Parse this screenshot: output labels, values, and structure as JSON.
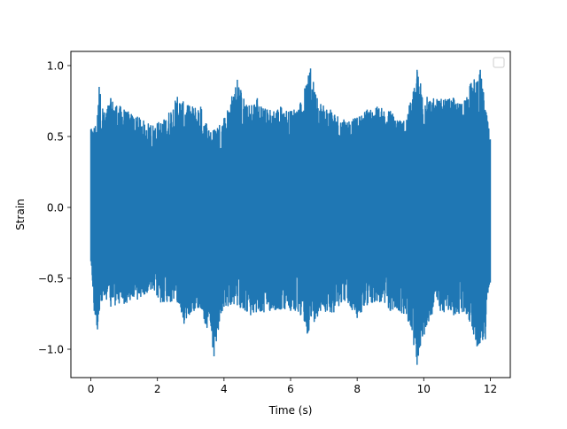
{
  "chart_data": {
    "type": "line",
    "title": "",
    "xlabel": "Time (s)",
    "ylabel": "Strain",
    "xlim": [
      -0.6,
      12.6
    ],
    "ylim": [
      -1.2,
      1.1
    ],
    "xticks": [
      0,
      2,
      4,
      6,
      8,
      10,
      12
    ],
    "xtick_labels": [
      "0",
      "2",
      "4",
      "6",
      "8",
      "10",
      "12"
    ],
    "yticks": [
      -1.0,
      -0.5,
      0.0,
      0.5,
      1.0
    ],
    "ytick_labels": [
      "−1.0",
      "−0.5",
      "0.0",
      "0.5",
      "1.0"
    ],
    "grid": false,
    "legend": {
      "placement": "top-right",
      "entries": []
    },
    "series": [
      {
        "color": "#1f77b4",
        "x_range": [
          0,
          12
        ],
        "envelope_upper": [
          [
            0.0,
            0.55
          ],
          [
            0.1,
            0.56
          ],
          [
            0.2,
            0.65
          ],
          [
            0.25,
            0.85
          ],
          [
            0.4,
            0.67
          ],
          [
            0.6,
            0.77
          ],
          [
            1.0,
            0.69
          ],
          [
            1.4,
            0.64
          ],
          [
            1.8,
            0.58
          ],
          [
            2.2,
            0.62
          ],
          [
            2.6,
            0.78
          ],
          [
            2.9,
            0.72
          ],
          [
            3.3,
            0.71
          ],
          [
            3.6,
            0.53
          ],
          [
            4.0,
            0.63
          ],
          [
            4.4,
            0.9
          ],
          [
            4.7,
            0.71
          ],
          [
            5.0,
            0.77
          ],
          [
            5.3,
            0.69
          ],
          [
            5.7,
            0.71
          ],
          [
            6.0,
            0.68
          ],
          [
            6.3,
            0.74
          ],
          [
            6.6,
            0.98
          ],
          [
            6.8,
            0.77
          ],
          [
            7.2,
            0.69
          ],
          [
            7.6,
            0.62
          ],
          [
            8.0,
            0.63
          ],
          [
            8.3,
            0.69
          ],
          [
            8.6,
            0.71
          ],
          [
            9.0,
            0.68
          ],
          [
            9.4,
            0.61
          ],
          [
            9.6,
            0.74
          ],
          [
            9.8,
            0.97
          ],
          [
            10.1,
            0.78
          ],
          [
            10.4,
            0.76
          ],
          [
            10.9,
            0.77
          ],
          [
            11.1,
            0.73
          ],
          [
            11.4,
            0.87
          ],
          [
            11.7,
            0.97
          ],
          [
            12.0,
            0.48
          ]
        ],
        "envelope_lower": [
          [
            0.0,
            -0.38
          ],
          [
            0.1,
            -0.73
          ],
          [
            0.2,
            -0.86
          ],
          [
            0.4,
            -0.62
          ],
          [
            0.6,
            -0.7
          ],
          [
            1.0,
            -0.68
          ],
          [
            1.4,
            -0.65
          ],
          [
            1.8,
            -0.58
          ],
          [
            2.1,
            -0.67
          ],
          [
            2.6,
            -0.67
          ],
          [
            2.8,
            -0.82
          ],
          [
            3.0,
            -0.74
          ],
          [
            3.3,
            -0.71
          ],
          [
            3.7,
            -1.05
          ],
          [
            4.0,
            -0.7
          ],
          [
            4.4,
            -0.69
          ],
          [
            4.8,
            -0.76
          ],
          [
            5.2,
            -0.74
          ],
          [
            5.7,
            -0.72
          ],
          [
            6.0,
            -0.73
          ],
          [
            6.3,
            -0.76
          ],
          [
            6.5,
            -0.89
          ],
          [
            6.9,
            -0.73
          ],
          [
            7.3,
            -0.74
          ],
          [
            7.6,
            -0.65
          ],
          [
            8.0,
            -0.78
          ],
          [
            8.3,
            -0.69
          ],
          [
            8.6,
            -0.66
          ],
          [
            9.0,
            -0.73
          ],
          [
            9.4,
            -0.75
          ],
          [
            9.6,
            -0.83
          ],
          [
            9.8,
            -1.11
          ],
          [
            10.2,
            -0.76
          ],
          [
            10.5,
            -0.73
          ],
          [
            10.9,
            -0.76
          ],
          [
            11.3,
            -0.75
          ],
          [
            11.6,
            -0.98
          ],
          [
            11.85,
            -0.93
          ],
          [
            12.0,
            -0.53
          ]
        ]
      }
    ]
  }
}
